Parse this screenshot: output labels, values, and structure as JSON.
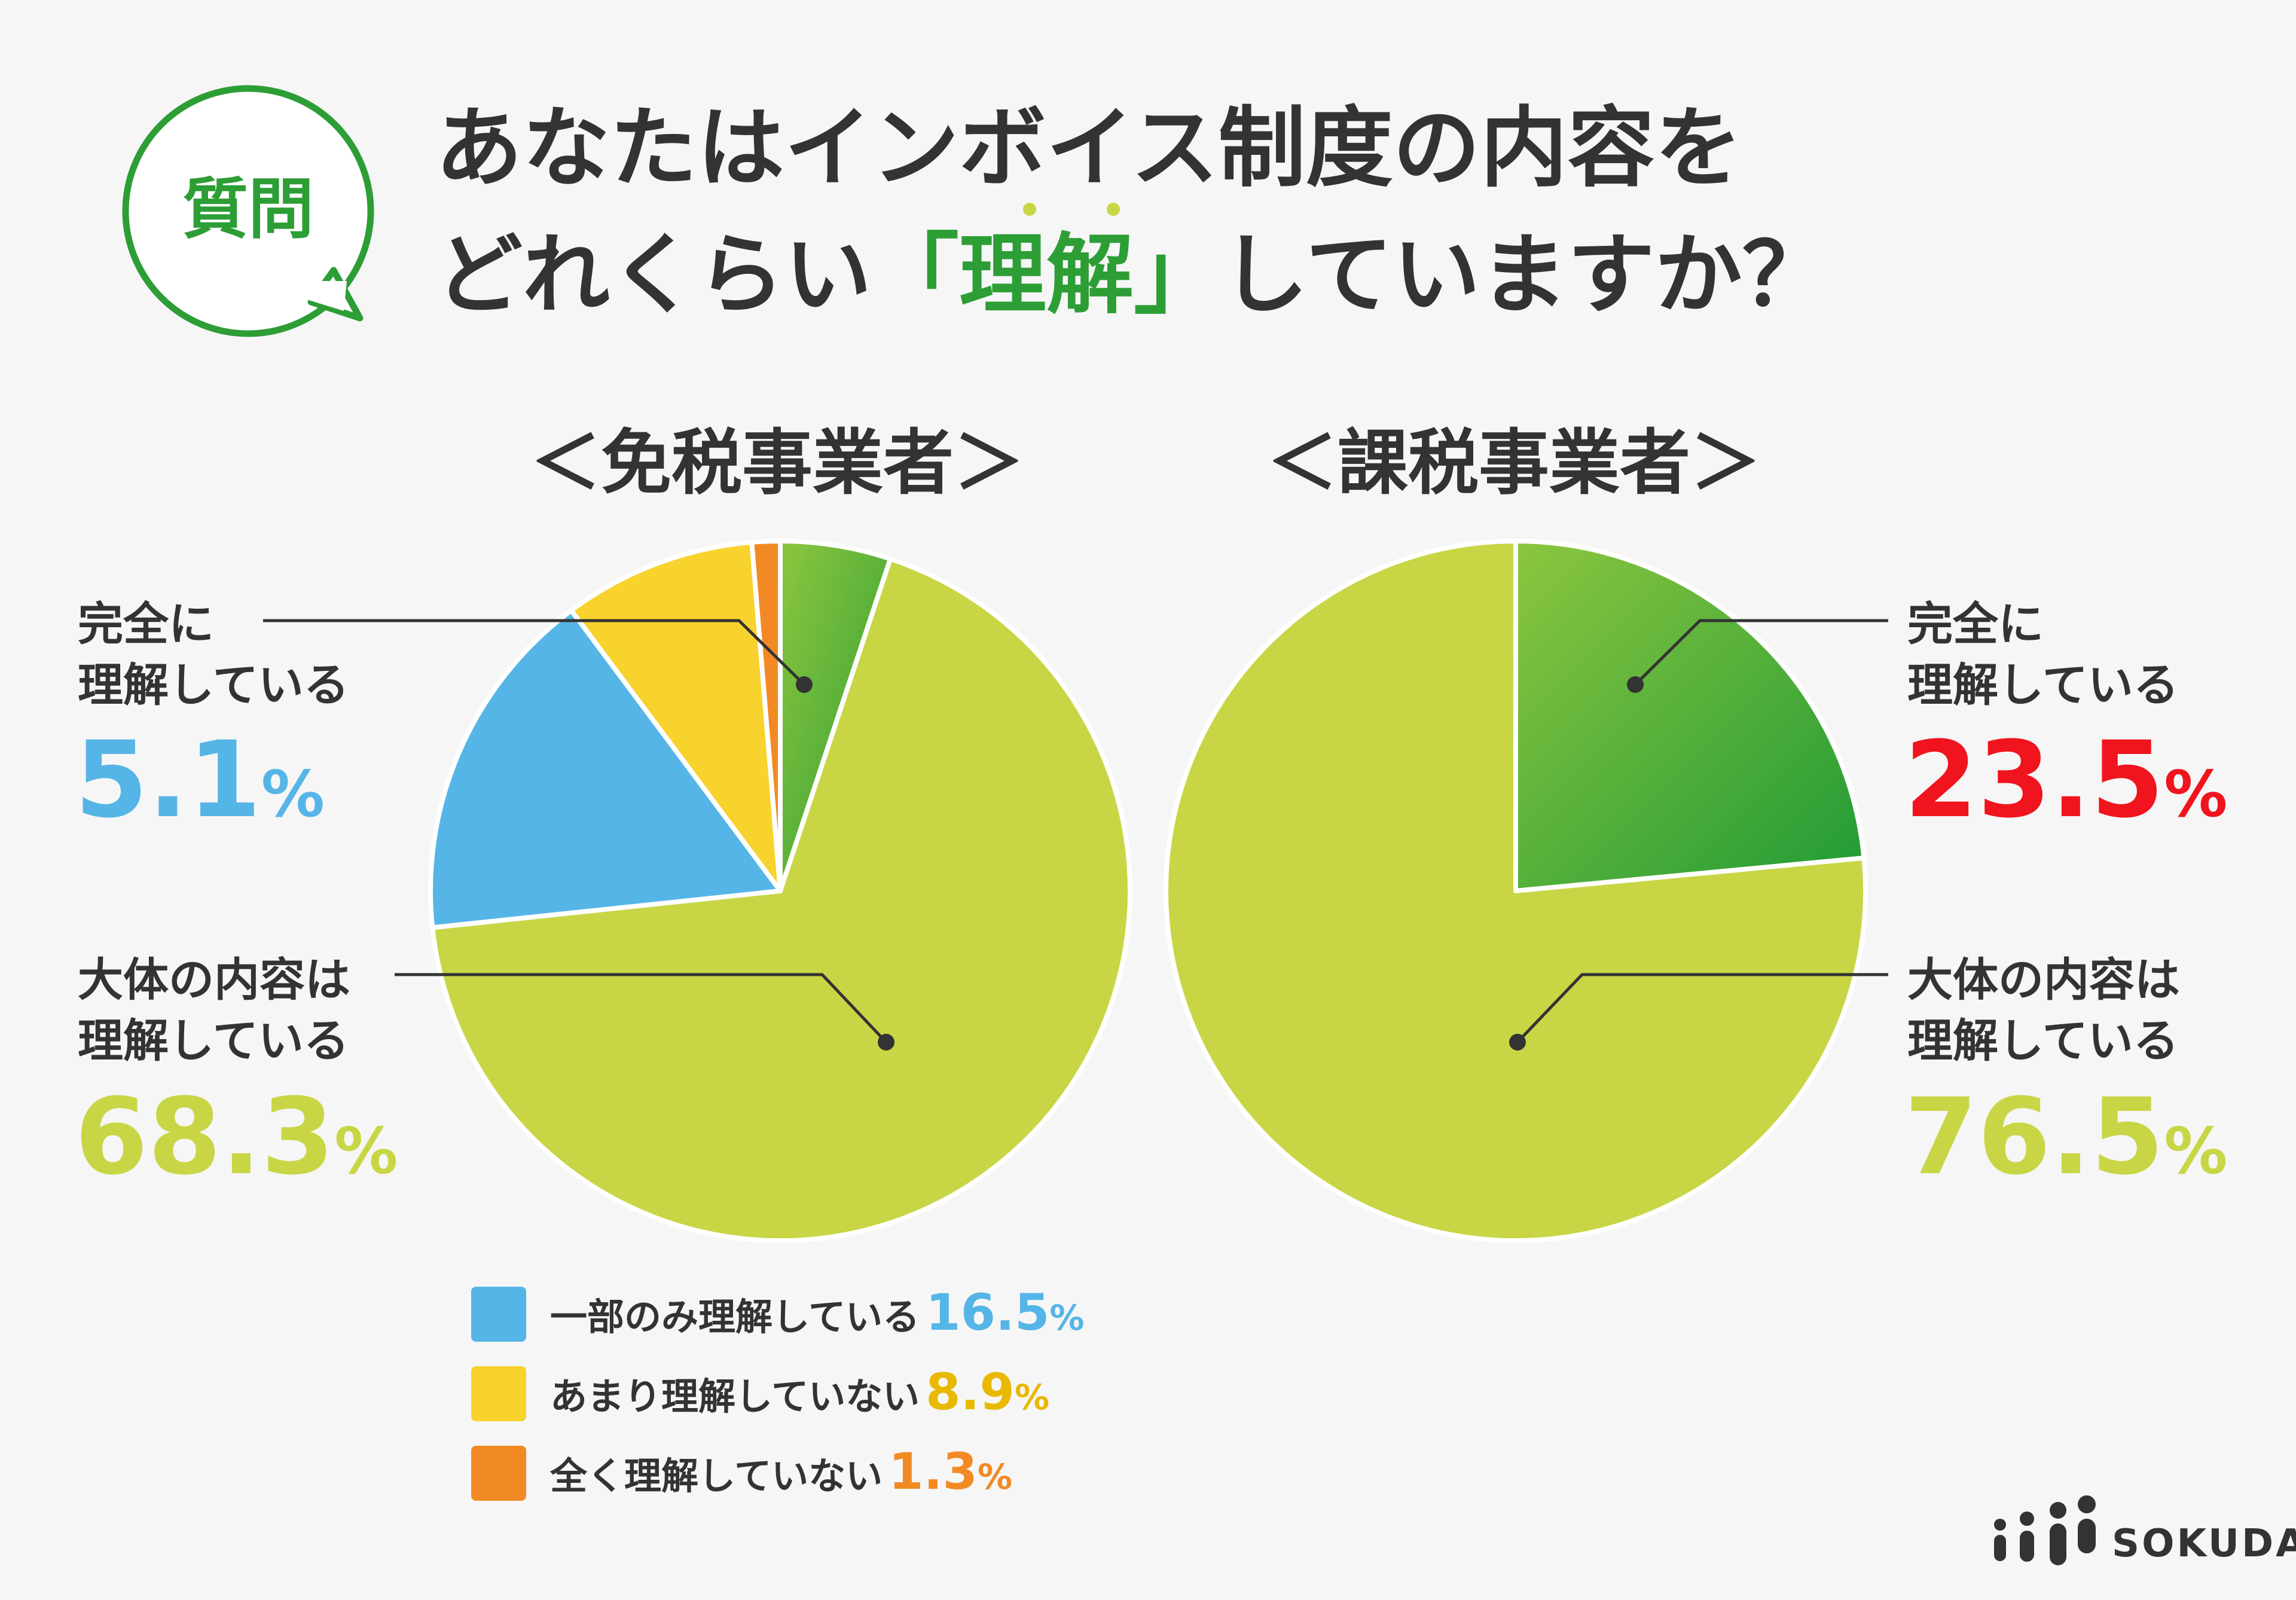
{
  "badge": {
    "text": "質問"
  },
  "title": {
    "line1": "あなたはインボイス制度の内容を",
    "line2_pre": "どれくらい",
    "line2_open": "「",
    "line2_key": "理解",
    "line2_close": "」",
    "line2_post": "していますか？"
  },
  "colors": {
    "green": "#2d9e35",
    "lime": "#c8d645",
    "blue": "#56b5e7",
    "yellow": "#f8d22d",
    "orange": "#f18a24",
    "red": "#f0141e",
    "dark": "#333333",
    "background": "#f6f6f6"
  },
  "chart_data": [
    {
      "type": "pie",
      "title": "＜免税事業者＞",
      "slices": [
        {
          "label": "完全に理解している",
          "value": 5.1,
          "display": "5.1",
          "color": "#2d9e35",
          "gradient": true
        },
        {
          "label": "大体の内容は理解している",
          "value": 68.3,
          "display": "68.3",
          "color": "#c8d645"
        },
        {
          "label": "一部のみ理解している",
          "value": 16.5,
          "display": "16.5",
          "color": "#56b5e7"
        },
        {
          "label": "あまり理解していない",
          "value": 8.9,
          "display": "8.9",
          "color": "#f8d22d"
        },
        {
          "label": "全く理解していない",
          "value": 1.3,
          "display": "1.3",
          "color": "#f18a24"
        }
      ]
    },
    {
      "type": "pie",
      "title": "＜課税事業者＞",
      "slices": [
        {
          "label": "完全に理解している",
          "value": 23.5,
          "display": "23.5",
          "color": "#2d9e35",
          "gradient": true
        },
        {
          "label": "大体の内容は理解している",
          "value": 76.5,
          "display": "76.5",
          "color": "#c8d645"
        }
      ]
    }
  ],
  "callouts": {
    "left_full": {
      "line1": "完全に",
      "line2": "理解している",
      "value": "5.1",
      "unit": "%"
    },
    "left_mostly": {
      "line1": "大体の内容は",
      "line2": "理解している",
      "value": "68.3",
      "unit": "%"
    },
    "right_full": {
      "line1": "完全に",
      "line2": "理解している",
      "value": "23.5",
      "unit": "%"
    },
    "right_mostly": {
      "line1": "大体の内容は",
      "line2": "理解している",
      "value": "76.5",
      "unit": "%"
    }
  },
  "legend": [
    {
      "label": "一部のみ理解している",
      "value": "16.5",
      "unit": "%",
      "color": "#56b5e7"
    },
    {
      "label": "あまり理解していない",
      "value": "8.9",
      "unit": "%",
      "color": "#f8d22d"
    },
    {
      "label": "全く理解していない",
      "value": "1.3",
      "unit": "%",
      "color": "#f18a24"
    }
  ],
  "logo": {
    "text": "SOKUDAN"
  }
}
